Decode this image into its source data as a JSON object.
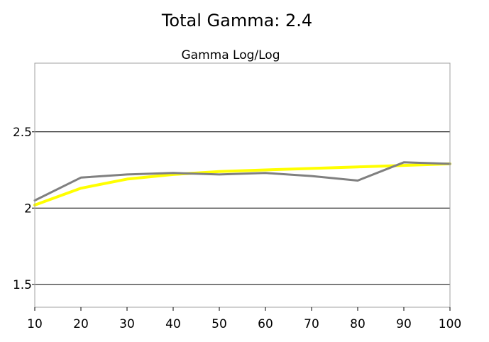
{
  "chart_data": {
    "type": "line",
    "title": "Total Gamma: 2.4",
    "subtitle": "Gamma Log/Log",
    "xlabel": "",
    "ylabel": "",
    "xlim": [
      10,
      100
    ],
    "ylim": [
      1.35,
      2.95
    ],
    "x_ticks": [
      "10",
      "20",
      "30",
      "40",
      "50",
      "60",
      "70",
      "80",
      "90",
      "100"
    ],
    "y_ticks": [
      {
        "value": 1.5,
        "label": "1.5"
      },
      {
        "value": 2.0,
        "label": "2"
      },
      {
        "value": 2.5,
        "label": "2.5"
      }
    ],
    "grid": "horizontal",
    "series": [
      {
        "color": "#ffff00",
        "x": [
          10,
          20,
          30,
          40,
          50,
          60,
          70,
          80,
          90,
          100
        ],
        "values": [
          2.02,
          2.13,
          2.19,
          2.22,
          2.24,
          2.25,
          2.26,
          2.27,
          2.28,
          2.29
        ]
      },
      {
        "color": "#808080",
        "x": [
          10,
          20,
          30,
          40,
          50,
          60,
          70,
          80,
          90,
          100
        ],
        "values": [
          2.05,
          2.2,
          2.22,
          2.23,
          2.22,
          2.23,
          2.21,
          2.18,
          2.3,
          2.29
        ]
      }
    ]
  }
}
